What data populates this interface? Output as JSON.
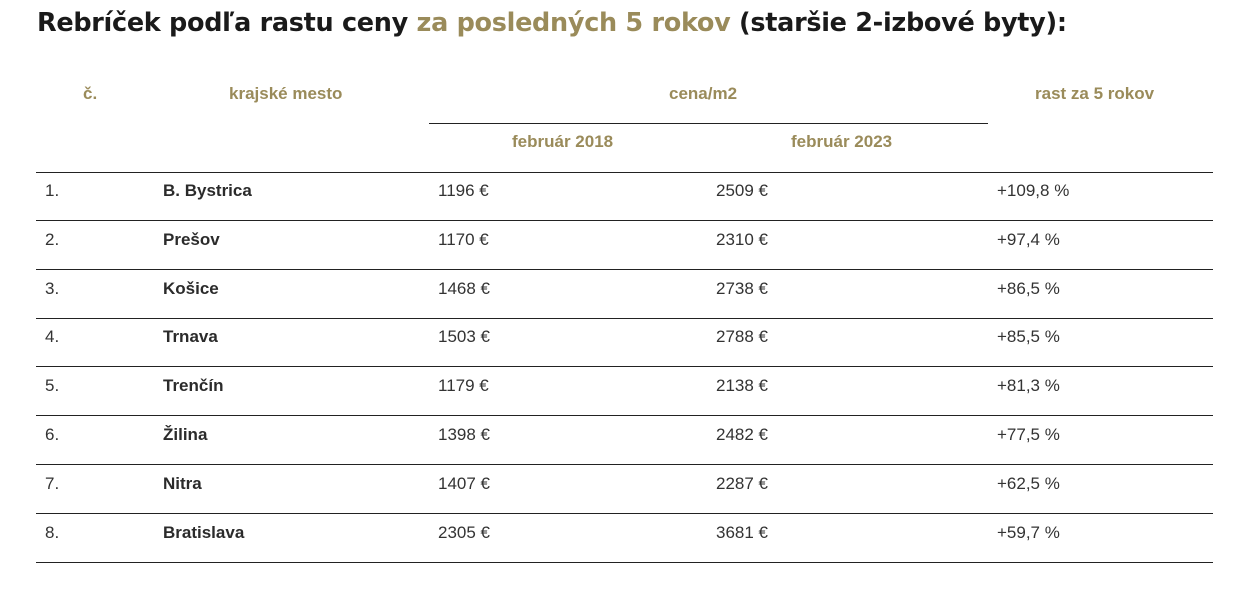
{
  "title": {
    "prefix": "Rebríček podľa rastu ceny",
    "highlight": "za posledných 5 rokov",
    "suffix": "(staršie 2-izbové byty):",
    "accent_color": "#9a8b5a"
  },
  "table": {
    "headers": {
      "rank": "č.",
      "city": "krajské mesto",
      "price": "cena/m2",
      "price_2018": "február 2018",
      "price_2023": "február 2023",
      "growth": "rast za 5 rokov"
    },
    "rows": [
      {
        "rank": "1.",
        "city": "B. Bystrica",
        "price_2018": "1196 €",
        "price_2023": "2509 €",
        "growth": "+109,8 %"
      },
      {
        "rank": "2.",
        "city": "Prešov",
        "price_2018": "1170 €",
        "price_2023": "2310 €",
        "growth": "+97,4 %"
      },
      {
        "rank": "3.",
        "city": "Košice",
        "price_2018": "1468 €",
        "price_2023": "2738 €",
        "growth": "+86,5 %"
      },
      {
        "rank": "4.",
        "city": "Trnava",
        "price_2018": "1503 €",
        "price_2023": "2788 €",
        "growth": "+85,5 %"
      },
      {
        "rank": "5.",
        "city": "Trenčín",
        "price_2018": "1179 €",
        "price_2023": "2138 €",
        "growth": "+81,3 %"
      },
      {
        "rank": "6.",
        "city": "Žilina",
        "price_2018": "1398 €",
        "price_2023": "2482 €",
        "growth": "+77,5 %"
      },
      {
        "rank": "7.",
        "city": "Nitra",
        "price_2018": "1407 €",
        "price_2023": "2287 €",
        "growth": "+62,5 %"
      },
      {
        "rank": "8.",
        "city": "Bratislava",
        "price_2018": "2305 €",
        "price_2023": "3681 €",
        "growth": "+59,7 %"
      }
    ]
  }
}
